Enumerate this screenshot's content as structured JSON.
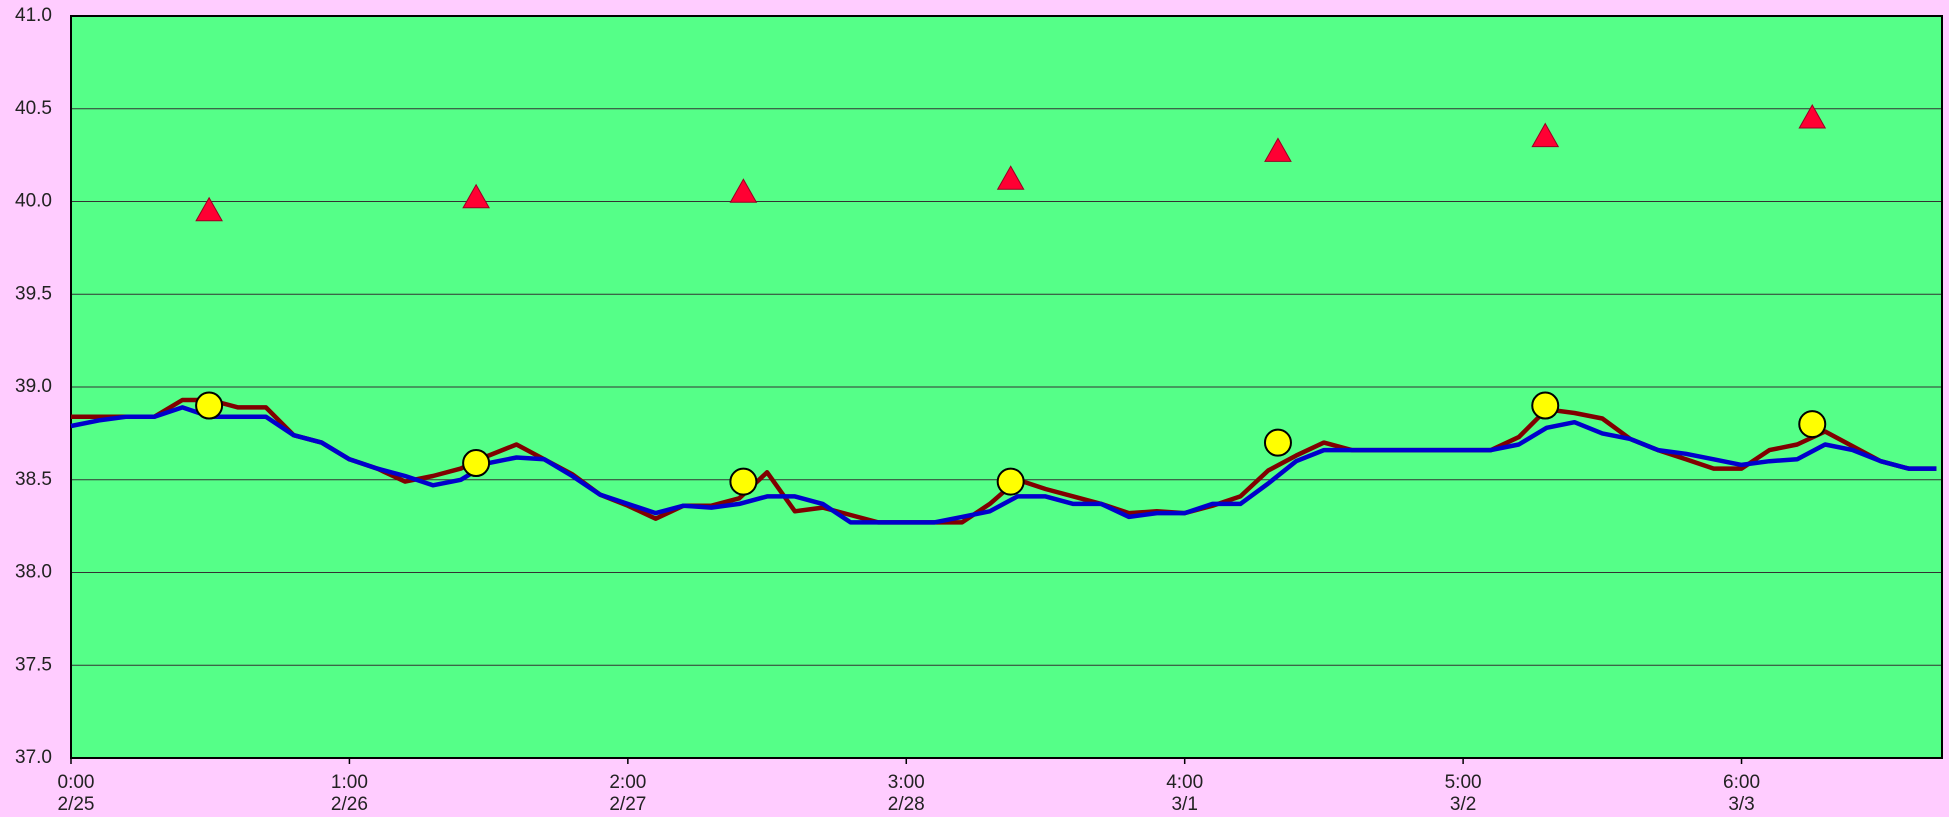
{
  "chart_data": {
    "type": "line",
    "plot_color": "#55ff88",
    "background": "#ffccff",
    "grid": true,
    "xlim": [
      0,
      6.72
    ],
    "xticks": [
      {
        "value": 0,
        "label": "0:00",
        "date": "2/25"
      },
      {
        "value": 1,
        "label": "1:00",
        "date": "2/26"
      },
      {
        "value": 2,
        "label": "2:00",
        "date": "2/27"
      },
      {
        "value": 3,
        "label": "3:00",
        "date": "2/28"
      },
      {
        "value": 4,
        "label": "4:00",
        "date": "3/1"
      },
      {
        "value": 5,
        "label": "5:00",
        "date": "3/2"
      },
      {
        "value": 6,
        "label": "6:00",
        "date": "3/3"
      }
    ],
    "ylim": [
      37,
      41
    ],
    "yticks": [
      {
        "value": 37,
        "label": "37.0"
      },
      37.5,
      {
        "value": 38,
        "label": "38.0"
      },
      38.5,
      {
        "value": 39,
        "label": "39.0"
      },
      39.5,
      {
        "value": 40,
        "label": "40.0"
      },
      40.5,
      {
        "value": 41,
        "label": "41.0"
      }
    ],
    "x": [
      0,
      0.1,
      0.2,
      0.3,
      0.4,
      0.5,
      0.6,
      0.7,
      0.8,
      0.9,
      1,
      1.1,
      1.2,
      1.3,
      1.4,
      1.5,
      1.6,
      1.7,
      1.8,
      1.9,
      2,
      2.1,
      2.2,
      2.3,
      2.4,
      2.5,
      2.6,
      2.7,
      2.8,
      2.9,
      3,
      3.1,
      3.2,
      3.3,
      3.4,
      3.5,
      3.6,
      3.7,
      3.8,
      3.9,
      4,
      4.1,
      4.2,
      4.3,
      4.4,
      4.5,
      4.6,
      4.7,
      4.8,
      4.9,
      5,
      5.1,
      5.2,
      5.3,
      5.4,
      5.5,
      5.6,
      5.7,
      5.8,
      5.9,
      6,
      6.1,
      6.2,
      6.3,
      6.4,
      6.5,
      6.6,
      6.7
    ],
    "series": [
      {
        "color": "#800000",
        "marker": "line",
        "values": [
          38.84,
          38.84,
          38.84,
          38.84,
          38.93,
          38.93,
          38.89,
          38.89,
          38.74,
          38.7,
          38.61,
          38.56,
          38.49,
          38.52,
          38.56,
          38.63,
          38.69,
          38.61,
          38.53,
          38.42,
          38.36,
          38.29,
          38.36,
          38.36,
          38.4,
          38.54,
          38.33,
          38.35,
          38.31,
          38.27,
          38.27,
          38.27,
          38.27,
          38.37,
          38.5,
          38.45,
          38.41,
          38.37,
          38.32,
          38.33,
          38.32,
          38.36,
          38.41,
          38.55,
          38.63,
          38.7,
          38.66,
          38.66,
          38.66,
          38.66,
          38.66,
          38.66,
          38.73,
          38.88,
          38.86,
          38.83,
          38.72,
          38.66,
          38.61,
          38.56,
          38.56,
          38.66,
          38.69,
          38.76,
          38.68,
          38.6,
          38.56,
          38.56
        ]
      },
      {
        "color": "#0000cc",
        "marker": "line",
        "values": [
          38.79,
          38.82,
          38.84,
          38.84,
          38.89,
          38.84,
          38.84,
          38.84,
          38.74,
          38.7,
          38.61,
          38.56,
          38.52,
          38.47,
          38.5,
          38.59,
          38.62,
          38.61,
          38.52,
          38.42,
          38.37,
          38.32,
          38.36,
          38.35,
          38.37,
          38.41,
          38.41,
          38.37,
          38.27,
          38.27,
          38.27,
          38.27,
          38.3,
          38.33,
          38.41,
          38.41,
          38.37,
          38.37,
          38.3,
          38.32,
          38.32,
          38.37,
          38.37,
          38.48,
          38.6,
          38.66,
          38.66,
          38.66,
          38.66,
          38.66,
          38.66,
          38.66,
          38.69,
          38.78,
          38.81,
          38.75,
          38.72,
          38.66,
          38.64,
          38.61,
          38.58,
          38.6,
          38.61,
          38.69,
          38.66,
          38.6,
          38.56,
          38.56
        ]
      },
      {
        "color": "#ff0033",
        "marker": "triangle",
        "x": [
          0.496,
          1.455,
          2.415,
          3.375,
          4.335,
          5.295,
          6.254
        ],
        "values": [
          39.95,
          40.02,
          40.05,
          40.12,
          40.27,
          40.35,
          40.45
        ]
      },
      {
        "color": "#ffff00",
        "marker": "circle",
        "x": [
          0.496,
          1.455,
          2.415,
          3.375,
          4.335,
          5.295,
          6.254
        ],
        "values": [
          38.9,
          38.59,
          38.49,
          38.49,
          38.7,
          38.9,
          38.8
        ]
      }
    ]
  }
}
